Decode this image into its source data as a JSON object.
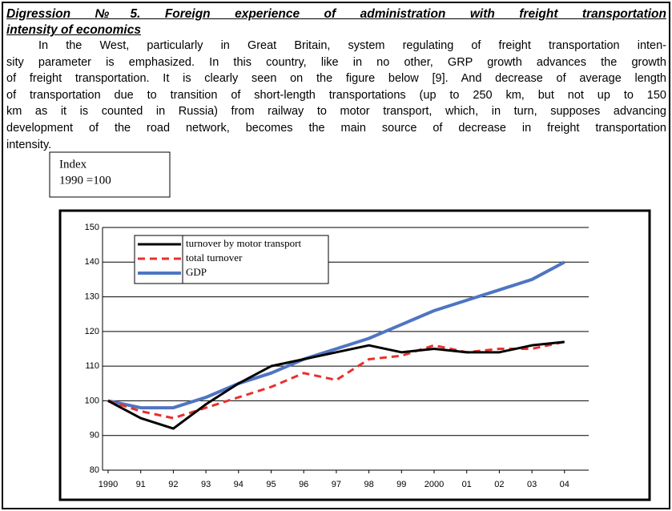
{
  "header": {
    "title": [
      "Digression №5. Foreign experience of administration with freight transportation",
      "intensity of economics"
    ]
  },
  "paragraph": [
    "In the West, particularly in Great Britain, system regulating of freight transportation  inten-",
    "sity parameter is emphasized. In this country, like in no other, GRP growth advances the growth",
    "of freight transportation. It is clearly seen on the figure below [9]. And decrease of average length",
    "of transportation due to transition of short-length transportations (up to 250 km, but not up to 150",
    "km as it is counted in Russia) from railway to motor transport, which, in turn, supposes advancing",
    "development of the road network, becomes the main source of decrease in freight transportation",
    "intensity."
  ],
  "chart_data": {
    "type": "line",
    "y_label": [
      "Index",
      "1990 =100"
    ],
    "categories": [
      "1990",
      "91",
      "92",
      "93",
      "94",
      "95",
      "96",
      "97",
      "98",
      "99",
      "2000",
      "01",
      "02",
      "03",
      "04"
    ],
    "series": [
      {
        "name": "turnover  by motor transport",
        "color": "#000000",
        "dash": false,
        "values": [
          100,
          95,
          92,
          99,
          105,
          110,
          112,
          114,
          116,
          114,
          115,
          114,
          114,
          116,
          117
        ]
      },
      {
        "name": "total turnover",
        "color": "#e8302e",
        "dash": true,
        "values": [
          100,
          97,
          95,
          98,
          101,
          104,
          108,
          106,
          112,
          113,
          116,
          114,
          115,
          115,
          117
        ]
      },
      {
        "name": "GDP",
        "color": "#4f75c2",
        "dash": false,
        "values": [
          100,
          98,
          98,
          101,
          105,
          108,
          112,
          115,
          118,
          122,
          126,
          129,
          132,
          135,
          140
        ]
      }
    ],
    "ylim": [
      80,
      150
    ],
    "yticks": [
      80,
      90,
      100,
      110,
      120,
      130,
      140,
      150
    ],
    "grid": true
  }
}
